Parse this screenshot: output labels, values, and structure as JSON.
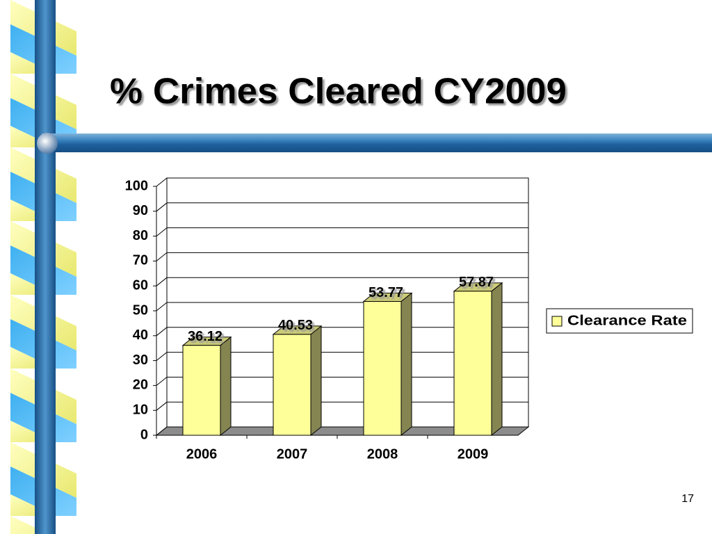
{
  "chart_data": {
    "type": "bar3d",
    "title": "% Crimes Cleared CY2009",
    "categories": [
      "2006",
      "2007",
      "2008",
      "2009"
    ],
    "series": [
      {
        "name": "Clearance Rate",
        "color": "#ffff99",
        "values": [
          36.12,
          40.53,
          53.77,
          57.87
        ]
      }
    ],
    "ylim": [
      0,
      100
    ],
    "yticks": [
      0,
      10,
      20,
      30,
      40,
      50,
      60,
      70,
      80,
      90,
      100
    ],
    "grid": true,
    "legend": "right"
  },
  "slide": {
    "page_number": "17"
  }
}
